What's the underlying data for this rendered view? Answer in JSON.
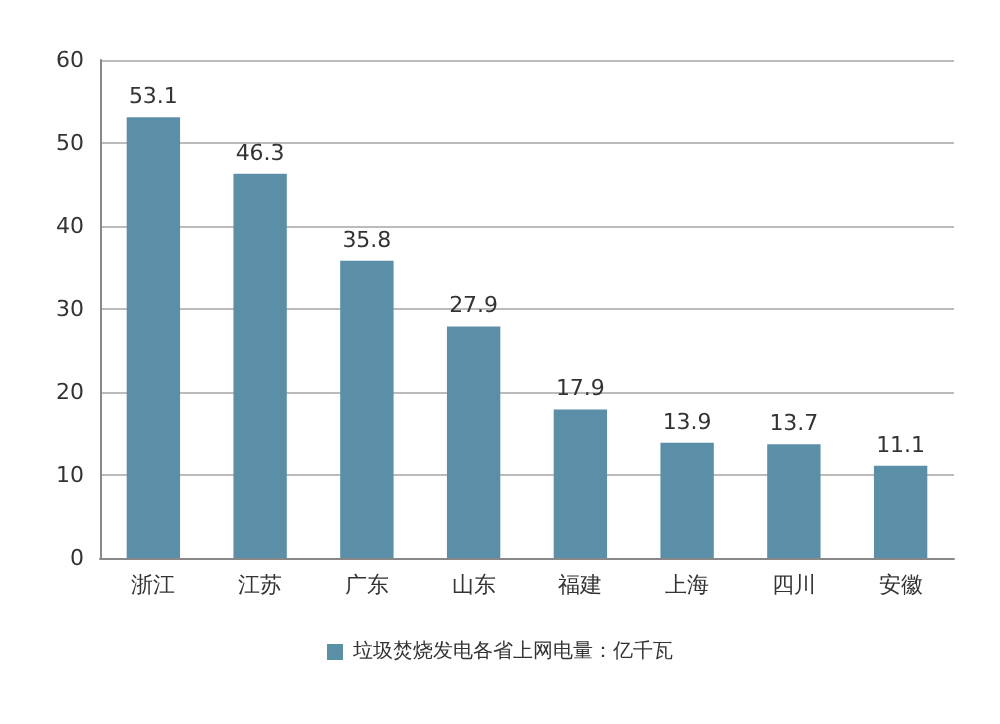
{
  "chart_data": {
    "type": "bar",
    "categories": [
      "浙江",
      "江苏",
      "广东",
      "山东",
      "福建",
      "上海",
      "四川",
      "安徽"
    ],
    "series": [
      {
        "name": "垃圾焚烧发电各省上网电量：亿千瓦",
        "color": "#5b8fa8",
        "values": [
          53.1,
          46.3,
          35.8,
          27.9,
          17.9,
          13.9,
          13.7,
          11.1
        ]
      }
    ],
    "ylim": [
      0,
      60
    ],
    "yticks": [
      0,
      10,
      20,
      30,
      40,
      50,
      60
    ],
    "grid": "y",
    "legend": "bottom",
    "data_labels": true
  }
}
